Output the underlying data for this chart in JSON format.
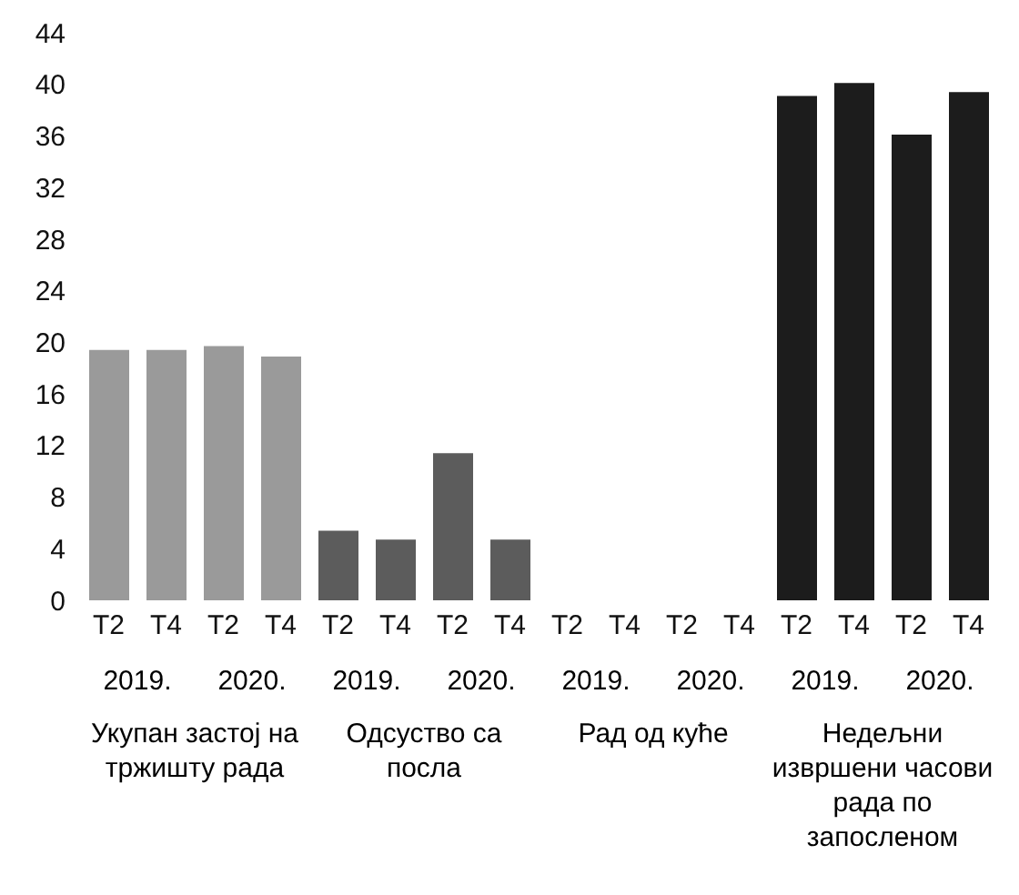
{
  "chart_data": {
    "type": "bar",
    "categories": [
      "T2",
      "T4",
      "T2",
      "T4",
      "T2",
      "T4",
      "T2",
      "T4",
      "T2",
      "T4",
      "T2",
      "T4",
      "T2",
      "T4",
      "T2",
      "T4"
    ],
    "values": [
      19.4,
      19.4,
      19.7,
      18.9,
      5.4,
      4.7,
      11.4,
      4.7,
      null,
      null,
      null,
      null,
      39.1,
      40.1,
      36.1,
      39.4
    ],
    "colors": [
      "#9a9a9a",
      "#9a9a9a",
      "#9a9a9a",
      "#9a9a9a",
      "#5c5c5c",
      "#5c5c5c",
      "#5c5c5c",
      "#5c5c5c",
      "#5c5c5c",
      "#5c5c5c",
      "#5c5c5c",
      "#5c5c5c",
      "#1c1c1c",
      "#1c1c1c",
      "#1c1c1c",
      "#1c1c1c"
    ],
    "ylim": [
      0,
      44
    ],
    "yticks": [
      0,
      4,
      8,
      12,
      16,
      20,
      24,
      28,
      32,
      36,
      40,
      44
    ],
    "grid": false,
    "annotations": [
      "2019.",
      "2020.",
      "2019.",
      "2020.",
      "2019.",
      "2020.",
      "2019.",
      "2020.",
      "Укупан застој на тржишту рада",
      "Одсуство са посла",
      "Рад од куће",
      "Недељни извршени часови рада по запосленом"
    ]
  }
}
